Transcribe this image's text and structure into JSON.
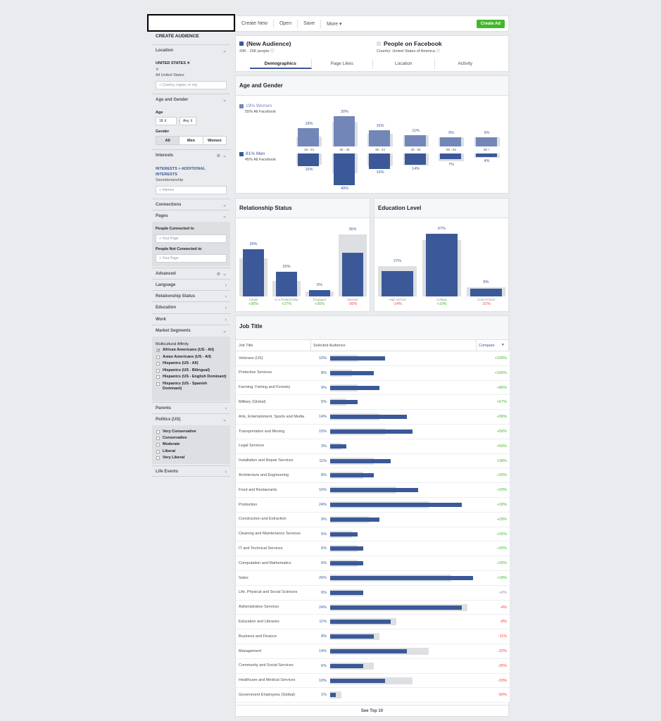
{
  "toolbar": {
    "create_new": "Create New",
    "open": "Open",
    "save": "Save",
    "more": "More ▾",
    "create_ad": "Create Ad"
  },
  "sidebar": {
    "title": "CREATE AUDIENCE",
    "location": {
      "label": "Location",
      "country": "UNITED STATES",
      "sub": "All United States",
      "placeholder": "Country, region, or city"
    },
    "age_gender": {
      "label": "Age and Gender",
      "age_label": "Age",
      "age_from": "18",
      "age_to": "Any",
      "dash": "—",
      "gender_label": "Gender",
      "all": "All",
      "men": "Men",
      "women": "Women"
    },
    "interests": {
      "label": "Interests",
      "path": "INTERESTS > ADDITIONAL INTERESTS",
      "value": "Swordsmanship",
      "placeholder": "Interest"
    },
    "connections": "Connections",
    "pages": {
      "label": "Pages",
      "connected": "People Connected to",
      "not_connected": "People Not Connected to",
      "placeholder": "Your Page"
    },
    "advanced": "Advanced",
    "language": "Language",
    "relationship": "Relationship Status",
    "education": "Education",
    "work": "Work",
    "market": {
      "label": "Market Segments",
      "affinity": "Multicultural Affinity",
      "items": [
        {
          "label": "African Americans (US - All)",
          "checked": true
        },
        {
          "label": "Asian Americans (US - All)",
          "checked": false
        },
        {
          "label": "Hispanics (US - All)",
          "checked": false
        },
        {
          "label": "Hispanics (US - Bilingual)",
          "checked": false
        },
        {
          "label": "Hispanics (US - English Dominant)",
          "checked": false
        },
        {
          "label": "Hispanics (US - Spanish Dominant)",
          "checked": false
        }
      ]
    },
    "parents": "Parents",
    "politics": {
      "label": "Politics (US)",
      "items": [
        "Very Conservative",
        "Conservative",
        "Moderate",
        "Liberal",
        "Very Liberal"
      ]
    },
    "life_events": "Life Events"
  },
  "header": {
    "audience_name": "(New Audience)",
    "audience_size": "20K - 25K people",
    "fb_name": "People on Facebook",
    "fb_country": "Country: United States of America"
  },
  "tabs": [
    "Demographics",
    "Page Likes",
    "Location",
    "Activity"
  ],
  "age_gender": {
    "title": "Age and Gender",
    "women_pct": "19% Women",
    "women_sub": "55% All Facebook",
    "men_pct": "81% Men",
    "men_sub": "45% All Facebook",
    "chart_data": {
      "type": "bar",
      "categories": [
        "18 - 24",
        "25 - 34",
        "35 - 44",
        "45 - 54",
        "55 - 64",
        "65 +"
      ],
      "series": [
        {
          "name": "Women",
          "values": [
            18,
            30,
            16,
            11,
            9,
            9
          ],
          "labels": [
            "18%",
            "30%",
            "16%",
            "11%",
            "9%",
            "9%"
          ]
        },
        {
          "name": "Men",
          "values": [
            16,
            40,
            19,
            14,
            7,
            4
          ],
          "labels": [
            "16%",
            "40%",
            "19%",
            "14%",
            "7%",
            "4%"
          ]
        }
      ]
    }
  },
  "relationship": {
    "title": "Relationship Status",
    "chart_data": {
      "type": "bar",
      "categories": [
        "Single",
        "In a Relationship",
        "Engaged",
        "Married"
      ],
      "values": [
        39,
        20,
        5,
        36
      ],
      "labels": [
        "39%",
        "20%",
        "5%",
        "36%"
      ],
      "fb": [
        31,
        13,
        4,
        51
      ],
      "compare": [
        "+36%",
        "+27%",
        "+26%",
        "-30%"
      ]
    }
  },
  "education": {
    "title": "Education Level",
    "chart_data": {
      "type": "bar",
      "categories": [
        "High School",
        "College",
        "Grad School"
      ],
      "values": [
        27,
        67,
        8
      ],
      "labels": [
        "27%",
        "67%",
        "8%"
      ],
      "fb": [
        32,
        60,
        10
      ],
      "compare": [
        "-14%",
        "+10%",
        "-21%"
      ]
    }
  },
  "job": {
    "title": "Job Title",
    "col_title": "Job Title",
    "col_aud": "Selected Audience",
    "col_cmp": "Compare",
    "footer": "See Top 10",
    "chart_data": {
      "type": "bar",
      "rows": [
        {
          "t": "Veterans (US)",
          "p": "10%",
          "v": 10,
          "fb": 5,
          "c": "+100%"
        },
        {
          "t": "Protective Services",
          "p": "8%",
          "v": 8,
          "fb": 4,
          "c": "+100%"
        },
        {
          "t": "Farming, Fishing and Forestry",
          "p": "9%",
          "v": 9,
          "fb": 5,
          "c": "+80%"
        },
        {
          "t": "Military (Global)",
          "p": "5%",
          "v": 5,
          "fb": 3,
          "c": "+67%"
        },
        {
          "t": "Arts, Entertainment, Sports and Media",
          "p": "14%",
          "v": 14,
          "fb": 9,
          "c": "+56%"
        },
        {
          "t": "Transportation and Moving",
          "p": "15%",
          "v": 15,
          "fb": 10,
          "c": "+50%"
        },
        {
          "t": "Legal Services",
          "p": "3%",
          "v": 3,
          "fb": 2,
          "c": "+50%"
        },
        {
          "t": "Installation and Repair Services",
          "p": "11%",
          "v": 11,
          "fb": 8,
          "c": "+38%"
        },
        {
          "t": "Architecture and Engineering",
          "p": "8%",
          "v": 8,
          "fb": 6,
          "c": "+33%"
        },
        {
          "t": "Food and Restaurants",
          "p": "16%",
          "v": 16,
          "fb": 12,
          "c": "+33%"
        },
        {
          "t": "Production",
          "p": "24%",
          "v": 24,
          "fb": 18,
          "c": "+33%"
        },
        {
          "t": "Construction and Extraction",
          "p": "9%",
          "v": 9,
          "fb": 7,
          "c": "+29%"
        },
        {
          "t": "Cleaning and Maintenance Services",
          "p": "5%",
          "v": 5,
          "fb": 4,
          "c": "+25%"
        },
        {
          "t": "IT and Technical Services",
          "p": "6%",
          "v": 6,
          "fb": 5,
          "c": "+20%"
        },
        {
          "t": "Computation and Mathematics",
          "p": "6%",
          "v": 6,
          "fb": 5,
          "c": "+20%"
        },
        {
          "t": "Sales",
          "p": "26%",
          "v": 26,
          "fb": 22,
          "c": "+18%"
        },
        {
          "t": "Life, Physical and Social Sciences",
          "p": "6%",
          "v": 6,
          "fb": 6,
          "c": "+0%"
        },
        {
          "t": "Administrative Services",
          "p": "24%",
          "v": 24,
          "fb": 25,
          "c": "-4%"
        },
        {
          "t": "Education and Libraries",
          "p": "11%",
          "v": 11,
          "fb": 12,
          "c": "-8%"
        },
        {
          "t": "Business and Finance",
          "p": "8%",
          "v": 8,
          "fb": 9,
          "c": "-11%"
        },
        {
          "t": "Management",
          "p": "14%",
          "v": 14,
          "fb": 18,
          "c": "-22%"
        },
        {
          "t": "Community and Social Services",
          "p": "6%",
          "v": 6,
          "fb": 8,
          "c": "-25%"
        },
        {
          "t": "Healthcare and Medical Services",
          "p": "10%",
          "v": 10,
          "fb": 15,
          "c": "-33%"
        },
        {
          "t": "Government Employees (Global)",
          "p": "1%",
          "v": 1,
          "fb": 2,
          "c": "-50%"
        }
      ]
    }
  }
}
